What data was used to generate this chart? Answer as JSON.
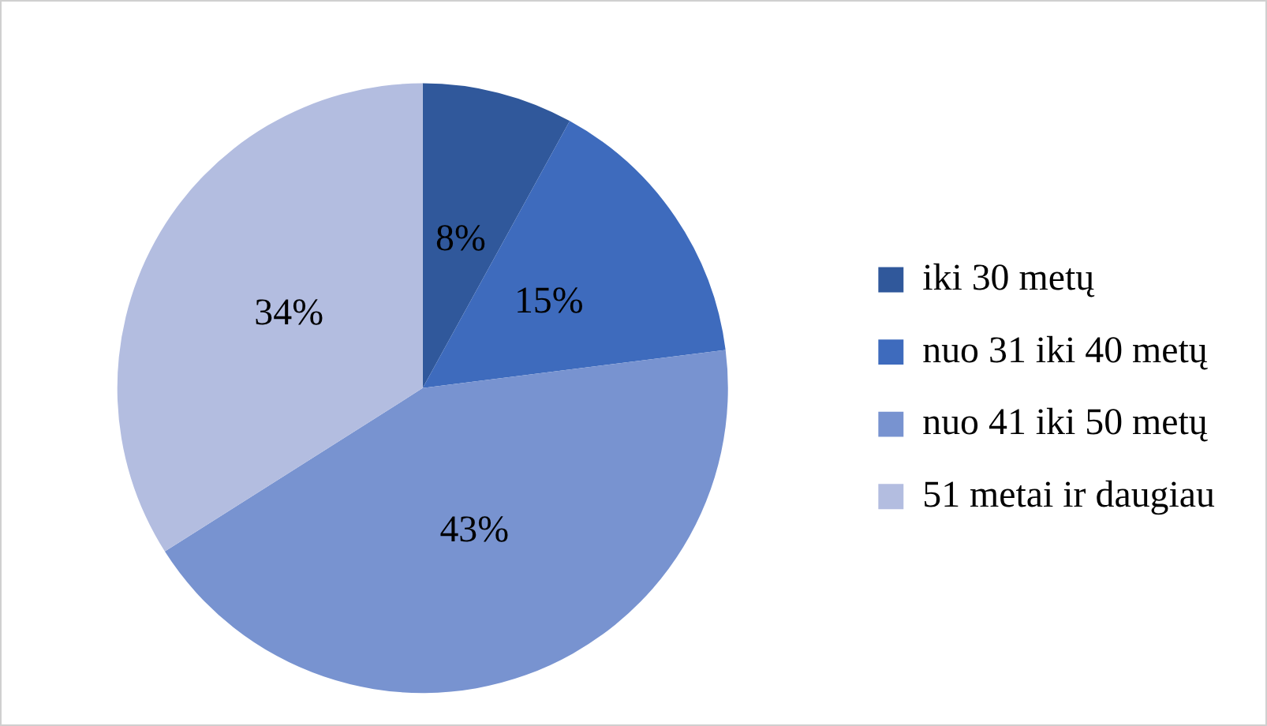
{
  "chart_data": {
    "type": "pie",
    "categories": [
      "iki 30 metų",
      "nuo 31 iki 40 metų",
      "nuo 41 iki 50 metų",
      "51 metai ir daugiau"
    ],
    "values": [
      8,
      15,
      43,
      34
    ],
    "colors": [
      "#30589b",
      "#3e6bbd",
      "#7893d0",
      "#b3bde0"
    ],
    "value_labels": [
      "8%",
      "15%",
      "43%",
      "34%"
    ],
    "legend": "right"
  }
}
